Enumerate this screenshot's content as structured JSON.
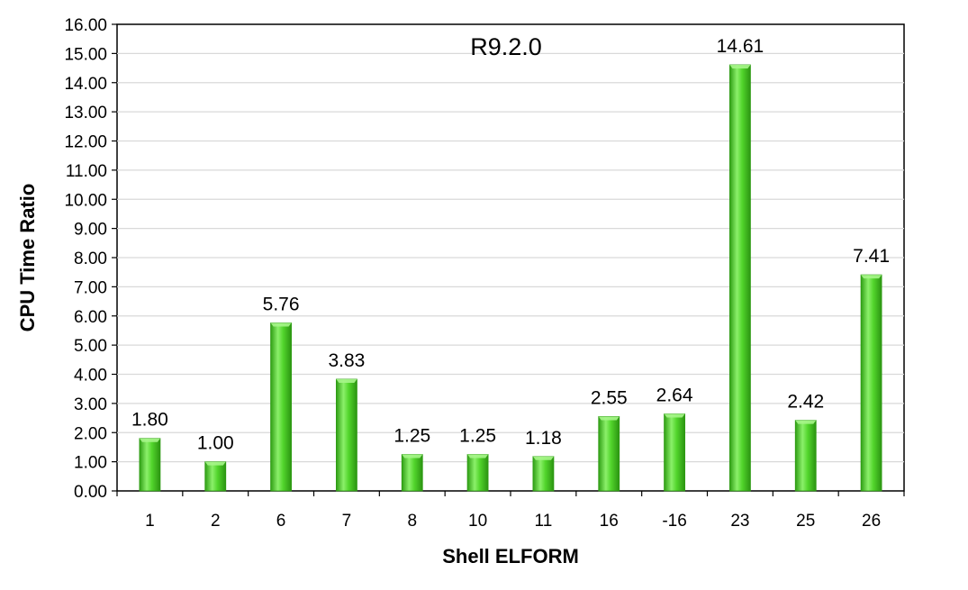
{
  "chart_data": {
    "type": "bar",
    "title": "R9.2.0",
    "xlabel": "Shell ELFORM",
    "ylabel": "CPU Time Ratio",
    "categories": [
      "1",
      "2",
      "6",
      "7",
      "8",
      "10",
      "11",
      "16",
      "-16",
      "23",
      "25",
      "26"
    ],
    "values": [
      1.8,
      1.0,
      5.76,
      3.83,
      1.25,
      1.25,
      1.18,
      2.55,
      2.64,
      14.61,
      2.42,
      7.41
    ],
    "value_labels": [
      "1.80",
      "1.00",
      "5.76",
      "3.83",
      "1.25",
      "1.25",
      "1.18",
      "2.55",
      "2.64",
      "14.61",
      "2.42",
      "7.41"
    ],
    "ylim": [
      0,
      16
    ],
    "yticks": [
      "0.00",
      "1.00",
      "2.00",
      "3.00",
      "4.00",
      "5.00",
      "6.00",
      "7.00",
      "8.00",
      "9.00",
      "10.00",
      "11.00",
      "12.00",
      "13.00",
      "14.00",
      "15.00",
      "16.00"
    ],
    "grid": true,
    "legend": "none",
    "colors": {
      "bar": "#4fd32a",
      "bar_dark": "#2c9a12",
      "bar_light": "#a6f58a",
      "grid": "#d9d9d9",
      "axis": "#000000"
    }
  }
}
